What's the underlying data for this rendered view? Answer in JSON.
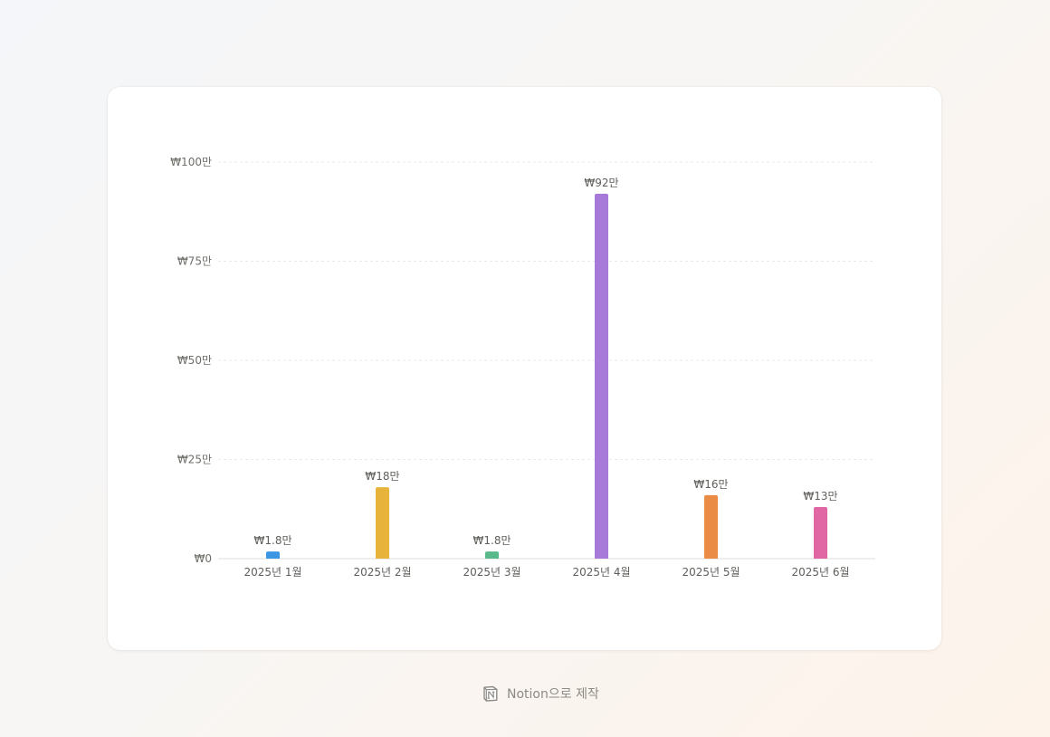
{
  "chart_data": {
    "type": "bar",
    "categories": [
      "2025년 1월",
      "2025년 2월",
      "2025년 3월",
      "2025년 4월",
      "2025년 5월",
      "2025년 6월"
    ],
    "values": [
      18000,
      180000,
      18000,
      920000,
      160000,
      130000
    ],
    "data_labels": [
      "₩1.8만",
      "₩18만",
      "₩1.8만",
      "₩92만",
      "₩16만",
      "₩13만"
    ],
    "colors": [
      "#3b97e3",
      "#e8b33a",
      "#59b98a",
      "#a77ad9",
      "#ea8c45",
      "#e066a4"
    ],
    "yticks": [
      0,
      250000,
      500000,
      750000,
      1000000
    ],
    "ytick_labels": [
      "₩0",
      "₩25만",
      "₩50만",
      "₩75만",
      "₩100만"
    ],
    "ylim": [
      0,
      1000000
    ],
    "grid": true,
    "title": "",
    "xlabel": "",
    "ylabel": ""
  },
  "footer": {
    "text": "Notion으로 제작",
    "icon": "notion-logo-icon"
  }
}
